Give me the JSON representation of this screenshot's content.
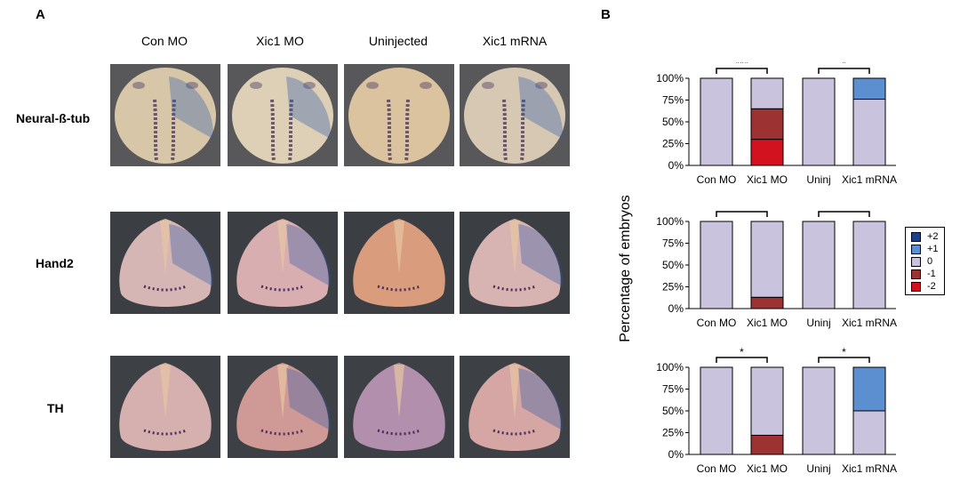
{
  "panel_a": {
    "label": "A",
    "columns": [
      "Con MO",
      "Xic1 MO",
      "Uninjected",
      "Xic1 mRNA"
    ],
    "rows": [
      "Neural-ß-tub",
      "Hand2",
      "TH"
    ]
  },
  "panel_b": {
    "label": "B"
  },
  "colors": {
    "plus2": "#1f3f86",
    "plus1": "#5b8fd0",
    "zero": "#c9c3dd",
    "minus1": "#9d3232",
    "minus2": "#d2121e"
  },
  "chart_data": {
    "type": "bar",
    "stacked": true,
    "ylabel": "Percentage of embryos",
    "categories": [
      "Con MO",
      "Xic1 MO",
      "Uninj",
      "Xic1 mRNA"
    ],
    "yticks": [
      "0%",
      "25%",
      "50%",
      "75%",
      "100%"
    ],
    "ylim": [
      0,
      100
    ],
    "legend": {
      "position": "right",
      "entries": [
        "+2",
        "+1",
        "0",
        "-1",
        "-2"
      ]
    },
    "subplots": [
      {
        "series": [
          {
            "name": "-2",
            "values": [
              0,
              30,
              0,
              0
            ]
          },
          {
            "name": "-1",
            "values": [
              0,
              35,
              0,
              0
            ]
          },
          {
            "name": "0",
            "values": [
              100,
              35,
              100,
              76
            ]
          },
          {
            "name": "+1",
            "values": [
              0,
              0,
              0,
              24
            ]
          },
          {
            "name": "+2",
            "values": [
              0,
              0,
              0,
              0
            ]
          }
        ],
        "significance": [
          {
            "between": [
              "Con MO",
              "Xic1 MO"
            ],
            "label": "***"
          },
          {
            "between": [
              "Uninj",
              "Xic1 mRNA"
            ],
            "label": "*"
          }
        ]
      },
      {
        "series": [
          {
            "name": "-2",
            "values": [
              0,
              0,
              0,
              0
            ]
          },
          {
            "name": "-1",
            "values": [
              0,
              13,
              0,
              0
            ]
          },
          {
            "name": "0",
            "values": [
              100,
              87,
              100,
              100
            ]
          },
          {
            "name": "+1",
            "values": [
              0,
              0,
              0,
              0
            ]
          },
          {
            "name": "+2",
            "values": [
              0,
              0,
              0,
              0
            ]
          }
        ],
        "significance": [
          {
            "between": [
              "Con MO",
              "Xic1 MO"
            ],
            "label": ""
          },
          {
            "between": [
              "Uninj",
              "Xic1 mRNA"
            ],
            "label": ""
          }
        ]
      },
      {
        "series": [
          {
            "name": "-2",
            "values": [
              0,
              0,
              0,
              0
            ]
          },
          {
            "name": "-1",
            "values": [
              0,
              22,
              0,
              0
            ]
          },
          {
            "name": "0",
            "values": [
              100,
              78,
              100,
              50
            ]
          },
          {
            "name": "+1",
            "values": [
              0,
              0,
              0,
              50
            ]
          },
          {
            "name": "+2",
            "values": [
              0,
              0,
              0,
              0
            ]
          }
        ],
        "significance": [
          {
            "between": [
              "Con MO",
              "Xic1 MO"
            ],
            "label": "*"
          },
          {
            "between": [
              "Uninj",
              "Xic1 mRNA"
            ],
            "label": "*"
          }
        ]
      }
    ]
  }
}
